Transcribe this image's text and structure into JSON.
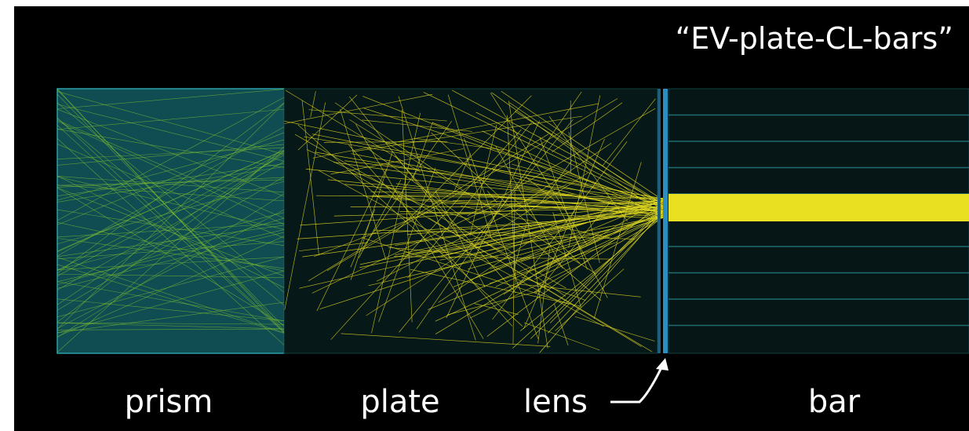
{
  "title": "“EV-plate-CL-bars”",
  "labels": {
    "prism": "prism",
    "plate": "plate",
    "lens": "lens",
    "bar": "bar"
  }
}
